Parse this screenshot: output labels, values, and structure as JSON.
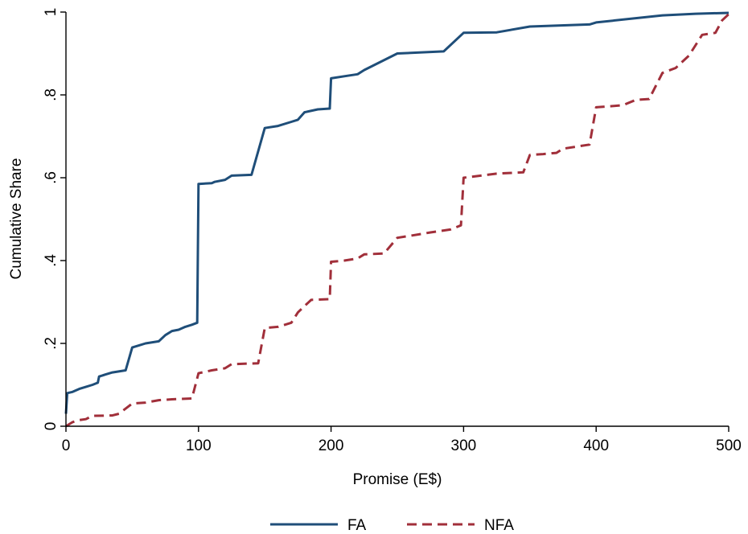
{
  "chart_data": {
    "type": "line",
    "title": "",
    "xlabel": "Promise (E$)",
    "ylabel": "Cumulative Share",
    "xlim": [
      0,
      500
    ],
    "ylim": [
      0,
      1
    ],
    "x_ticks": [
      0,
      100,
      200,
      300,
      400,
      500
    ],
    "x_tick_labels": [
      "0",
      "100",
      "200",
      "300",
      "400",
      "500"
    ],
    "y_ticks": [
      0,
      0.2,
      0.4,
      0.6,
      0.8,
      1
    ],
    "y_tick_labels": [
      "0",
      ".2",
      ".4",
      ".6",
      ".8",
      "1"
    ],
    "grid": false,
    "legend_position": "bottom",
    "series": [
      {
        "name": "FA",
        "color": "#1f4e79",
        "style": "solid",
        "points": [
          [
            0,
            0.03
          ],
          [
            1,
            0.08
          ],
          [
            5,
            0.083
          ],
          [
            10,
            0.09
          ],
          [
            15,
            0.095
          ],
          [
            20,
            0.1
          ],
          [
            24,
            0.105
          ],
          [
            25,
            0.12
          ],
          [
            30,
            0.125
          ],
          [
            35,
            0.13
          ],
          [
            45,
            0.135
          ],
          [
            50,
            0.19
          ],
          [
            55,
            0.195
          ],
          [
            60,
            0.2
          ],
          [
            70,
            0.205
          ],
          [
            75,
            0.22
          ],
          [
            80,
            0.23
          ],
          [
            85,
            0.233
          ],
          [
            90,
            0.24
          ],
          [
            95,
            0.245
          ],
          [
            99,
            0.25
          ],
          [
            100,
            0.585
          ],
          [
            110,
            0.587
          ],
          [
            112,
            0.59
          ],
          [
            120,
            0.595
          ],
          [
            125,
            0.605
          ],
          [
            140,
            0.607
          ],
          [
            150,
            0.72
          ],
          [
            160,
            0.725
          ],
          [
            170,
            0.735
          ],
          [
            175,
            0.74
          ],
          [
            180,
            0.758
          ],
          [
            190,
            0.765
          ],
          [
            199,
            0.767
          ],
          [
            200,
            0.84
          ],
          [
            210,
            0.845
          ],
          [
            220,
            0.85
          ],
          [
            225,
            0.86
          ],
          [
            250,
            0.9
          ],
          [
            285,
            0.905
          ],
          [
            300,
            0.95
          ],
          [
            325,
            0.951
          ],
          [
            350,
            0.965
          ],
          [
            395,
            0.97
          ],
          [
            400,
            0.975
          ],
          [
            450,
            0.992
          ],
          [
            475,
            0.996
          ],
          [
            500,
            0.998
          ]
        ]
      },
      {
        "name": "NFA",
        "color": "#a12f3a",
        "style": "dashed",
        "points": [
          [
            0,
            0.0
          ],
          [
            5,
            0.01
          ],
          [
            10,
            0.015
          ],
          [
            15,
            0.017
          ],
          [
            20,
            0.025
          ],
          [
            35,
            0.026
          ],
          [
            40,
            0.03
          ],
          [
            50,
            0.055
          ],
          [
            60,
            0.057
          ],
          [
            70,
            0.063
          ],
          [
            80,
            0.065
          ],
          [
            95,
            0.067
          ],
          [
            100,
            0.128
          ],
          [
            110,
            0.135
          ],
          [
            120,
            0.14
          ],
          [
            125,
            0.15
          ],
          [
            145,
            0.152
          ],
          [
            150,
            0.237
          ],
          [
            160,
            0.24
          ],
          [
            170,
            0.25
          ],
          [
            175,
            0.275
          ],
          [
            180,
            0.29
          ],
          [
            185,
            0.305
          ],
          [
            199,
            0.307
          ],
          [
            200,
            0.397
          ],
          [
            210,
            0.4
          ],
          [
            220,
            0.405
          ],
          [
            225,
            0.415
          ],
          [
            240,
            0.417
          ],
          [
            250,
            0.455
          ],
          [
            260,
            0.46
          ],
          [
            275,
            0.468
          ],
          [
            290,
            0.475
          ],
          [
            298,
            0.485
          ],
          [
            300,
            0.6
          ],
          [
            325,
            0.61
          ],
          [
            345,
            0.613
          ],
          [
            350,
            0.655
          ],
          [
            360,
            0.657
          ],
          [
            370,
            0.66
          ],
          [
            375,
            0.67
          ],
          [
            395,
            0.68
          ],
          [
            400,
            0.77
          ],
          [
            420,
            0.775
          ],
          [
            430,
            0.788
          ],
          [
            440,
            0.79
          ],
          [
            450,
            0.853
          ],
          [
            460,
            0.865
          ],
          [
            470,
            0.895
          ],
          [
            480,
            0.945
          ],
          [
            490,
            0.95
          ],
          [
            495,
            0.98
          ],
          [
            500,
            0.995
          ]
        ]
      }
    ]
  }
}
